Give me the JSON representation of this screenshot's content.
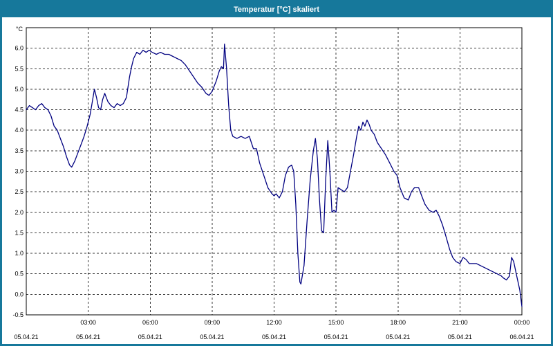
{
  "window": {
    "title": "Temperatur [°C] skaliert",
    "title_bar_color": "#16789b",
    "border_color": "#16789b",
    "background": "#ffffff"
  },
  "chart_data": {
    "type": "line",
    "title": "Temperatur [°C] skaliert",
    "unit_label": "°C",
    "line_color": "#000080",
    "grid_color": "#3a3a3a",
    "axis_color": "#000000",
    "xlabel": "",
    "ylabel": "°C",
    "x_unit": "hours",
    "xlim": [
      0,
      24
    ],
    "ylim": [
      -0.5,
      6.5
    ],
    "grid": true,
    "legend": "none",
    "y_ticks": [
      -0.5,
      0.0,
      0.5,
      1.0,
      1.5,
      2.0,
      2.5,
      3.0,
      3.5,
      4.0,
      4.5,
      5.0,
      5.5,
      6.0
    ],
    "x_ticks": [
      {
        "hour": 0,
        "time": "",
        "date": "05.04.21"
      },
      {
        "hour": 3,
        "time": "03:00",
        "date": "05.04.21"
      },
      {
        "hour": 6,
        "time": "06:00",
        "date": "05.04.21"
      },
      {
        "hour": 9,
        "time": "09:00",
        "date": "05.04.21"
      },
      {
        "hour": 12,
        "time": "12:00",
        "date": "05.04.21"
      },
      {
        "hour": 15,
        "time": "15:00",
        "date": "05.04.21"
      },
      {
        "hour": 18,
        "time": "18:00",
        "date": "05.04.21"
      },
      {
        "hour": 21,
        "time": "21:00",
        "date": "05.04.21"
      },
      {
        "hour": 24,
        "time": "00:00",
        "date": "06.04.21"
      }
    ],
    "series": [
      {
        "name": "Temperatur",
        "points": [
          [
            0,
            4.5
          ],
          [
            0.15,
            4.6
          ],
          [
            0.3,
            4.55
          ],
          [
            0.45,
            4.5
          ],
          [
            0.6,
            4.6
          ],
          [
            0.75,
            4.65
          ],
          [
            0.9,
            4.55
          ],
          [
            1.05,
            4.5
          ],
          [
            1.2,
            4.35
          ],
          [
            1.35,
            4.1
          ],
          [
            1.5,
            4.0
          ],
          [
            1.65,
            3.8
          ],
          [
            1.8,
            3.6
          ],
          [
            1.95,
            3.35
          ],
          [
            2.1,
            3.15
          ],
          [
            2.2,
            3.1
          ],
          [
            2.35,
            3.25
          ],
          [
            2.5,
            3.45
          ],
          [
            2.65,
            3.65
          ],
          [
            2.8,
            3.85
          ],
          [
            2.95,
            4.1
          ],
          [
            3.1,
            4.4
          ],
          [
            3.2,
            4.7
          ],
          [
            3.3,
            5.0
          ],
          [
            3.4,
            4.8
          ],
          [
            3.5,
            4.55
          ],
          [
            3.6,
            4.5
          ],
          [
            3.7,
            4.75
          ],
          [
            3.8,
            4.9
          ],
          [
            3.95,
            4.7
          ],
          [
            4.1,
            4.6
          ],
          [
            4.25,
            4.55
          ],
          [
            4.4,
            4.65
          ],
          [
            4.55,
            4.6
          ],
          [
            4.7,
            4.65
          ],
          [
            4.85,
            4.8
          ],
          [
            5.0,
            5.3
          ],
          [
            5.1,
            5.55
          ],
          [
            5.2,
            5.75
          ],
          [
            5.35,
            5.9
          ],
          [
            5.5,
            5.85
          ],
          [
            5.65,
            5.95
          ],
          [
            5.8,
            5.9
          ],
          [
            5.95,
            5.95
          ],
          [
            6.1,
            5.9
          ],
          [
            6.3,
            5.85
          ],
          [
            6.5,
            5.9
          ],
          [
            6.7,
            5.85
          ],
          [
            6.9,
            5.85
          ],
          [
            7.1,
            5.8
          ],
          [
            7.3,
            5.75
          ],
          [
            7.5,
            5.7
          ],
          [
            7.7,
            5.6
          ],
          [
            7.9,
            5.45
          ],
          [
            8.1,
            5.3
          ],
          [
            8.3,
            5.15
          ],
          [
            8.5,
            5.05
          ],
          [
            8.7,
            4.9
          ],
          [
            8.85,
            4.85
          ],
          [
            9.0,
            4.95
          ],
          [
            9.2,
            5.2
          ],
          [
            9.35,
            5.45
          ],
          [
            9.45,
            5.55
          ],
          [
            9.55,
            5.5
          ],
          [
            9.6,
            6.1
          ],
          [
            9.7,
            5.5
          ],
          [
            9.8,
            4.6
          ],
          [
            9.9,
            4.0
          ],
          [
            10.0,
            3.85
          ],
          [
            10.2,
            3.8
          ],
          [
            10.4,
            3.85
          ],
          [
            10.6,
            3.8
          ],
          [
            10.8,
            3.85
          ],
          [
            10.9,
            3.7
          ],
          [
            11.0,
            3.55
          ],
          [
            11.15,
            3.55
          ],
          [
            11.3,
            3.2
          ],
          [
            11.5,
            2.9
          ],
          [
            11.7,
            2.6
          ],
          [
            11.9,
            2.45
          ],
          [
            12.0,
            2.4
          ],
          [
            12.1,
            2.45
          ],
          [
            12.25,
            2.35
          ],
          [
            12.4,
            2.5
          ],
          [
            12.55,
            2.9
          ],
          [
            12.7,
            3.1
          ],
          [
            12.85,
            3.15
          ],
          [
            12.95,
            3.0
          ],
          [
            13.05,
            2.2
          ],
          [
            13.15,
            1.0
          ],
          [
            13.25,
            0.3
          ],
          [
            13.3,
            0.25
          ],
          [
            13.45,
            0.7
          ],
          [
            13.6,
            1.8
          ],
          [
            13.75,
            2.8
          ],
          [
            13.9,
            3.5
          ],
          [
            14.0,
            3.8
          ],
          [
            14.1,
            3.3
          ],
          [
            14.2,
            2.3
          ],
          [
            14.3,
            1.55
          ],
          [
            14.4,
            1.5
          ],
          [
            14.5,
            2.8
          ],
          [
            14.6,
            3.75
          ],
          [
            14.7,
            3.0
          ],
          [
            14.8,
            2.0
          ],
          [
            14.9,
            2.05
          ],
          [
            15.0,
            2.0
          ],
          [
            15.1,
            2.6
          ],
          [
            15.25,
            2.55
          ],
          [
            15.4,
            2.5
          ],
          [
            15.55,
            2.6
          ],
          [
            15.7,
            3.0
          ],
          [
            15.85,
            3.4
          ],
          [
            16.0,
            3.85
          ],
          [
            16.1,
            4.1
          ],
          [
            16.2,
            4.0
          ],
          [
            16.3,
            4.2
          ],
          [
            16.4,
            4.1
          ],
          [
            16.5,
            4.25
          ],
          [
            16.6,
            4.15
          ],
          [
            16.7,
            4.0
          ],
          [
            16.85,
            3.9
          ],
          [
            17.0,
            3.7
          ],
          [
            17.2,
            3.55
          ],
          [
            17.4,
            3.4
          ],
          [
            17.6,
            3.2
          ],
          [
            17.8,
            3.0
          ],
          [
            17.95,
            2.9
          ],
          [
            18.1,
            2.6
          ],
          [
            18.3,
            2.35
          ],
          [
            18.5,
            2.3
          ],
          [
            18.65,
            2.5
          ],
          [
            18.8,
            2.6
          ],
          [
            19.0,
            2.6
          ],
          [
            19.15,
            2.4
          ],
          [
            19.3,
            2.2
          ],
          [
            19.5,
            2.05
          ],
          [
            19.7,
            2.0
          ],
          [
            19.85,
            2.05
          ],
          [
            20.0,
            1.9
          ],
          [
            20.15,
            1.7
          ],
          [
            20.3,
            1.45
          ],
          [
            20.5,
            1.1
          ],
          [
            20.65,
            0.9
          ],
          [
            20.8,
            0.8
          ],
          [
            21.0,
            0.75
          ],
          [
            21.15,
            0.9
          ],
          [
            21.3,
            0.85
          ],
          [
            21.45,
            0.75
          ],
          [
            21.6,
            0.75
          ],
          [
            21.8,
            0.75
          ],
          [
            22.0,
            0.7
          ],
          [
            22.2,
            0.65
          ],
          [
            22.4,
            0.6
          ],
          [
            22.6,
            0.55
          ],
          [
            22.8,
            0.5
          ],
          [
            23.0,
            0.45
          ],
          [
            23.1,
            0.4
          ],
          [
            23.25,
            0.35
          ],
          [
            23.4,
            0.45
          ],
          [
            23.5,
            0.9
          ],
          [
            23.6,
            0.8
          ],
          [
            23.75,
            0.45
          ],
          [
            23.9,
            0.1
          ],
          [
            24.0,
            -0.3
          ]
        ]
      }
    ]
  }
}
